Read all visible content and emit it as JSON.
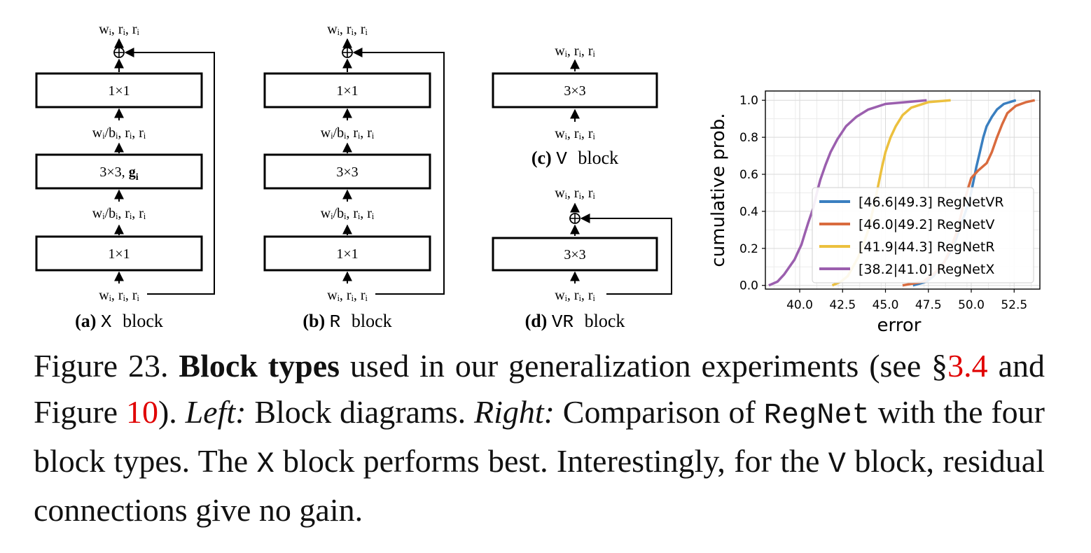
{
  "diagrams": {
    "io_label": "w",
    "sub_i": "i",
    "label_full": "wᵢ, rᵢ, rᵢ",
    "label_bottleneck": "wᵢ/bᵢ, rᵢ, rᵢ",
    "conv_1x1": "1×1",
    "conv_3x3": "3×3",
    "conv_3x3_group_prefix": "3×3, ",
    "conv_3x3_group_g": "g",
    "conv_3x3_group_sub": "i",
    "block_a_letter": "(a)",
    "block_a_name": "X",
    "block_b_letter": "(b)",
    "block_b_name": "R",
    "block_c_letter": "(c)",
    "block_c_name": "V",
    "block_d_letter": "(d)",
    "block_d_name": "VR",
    "block_word": "block"
  },
  "chart_data": {
    "type": "line",
    "xlabel": "error",
    "ylabel": "cumulative prob.",
    "xlim": [
      38.0,
      54.0
    ],
    "ylim": [
      -0.02,
      1.05
    ],
    "xticks": [
      40.0,
      42.5,
      45.0,
      47.5,
      50.0,
      52.5
    ],
    "xtick_labels": [
      "40.0",
      "42.5",
      "45.0",
      "47.5",
      "50.0",
      "52.5"
    ],
    "yticks": [
      0.0,
      0.2,
      0.4,
      0.6,
      0.8,
      1.0
    ],
    "ytick_labels": [
      "0.0",
      "0.2",
      "0.4",
      "0.6",
      "0.8",
      "1.0"
    ],
    "grid": true,
    "legend_position": "lower-right",
    "series": [
      {
        "name": "[46.6|49.3] RegNetVR",
        "color": "#3a7fc0",
        "points": [
          [
            46.6,
            0.0
          ],
          [
            47.4,
            0.02
          ],
          [
            47.8,
            0.05
          ],
          [
            48.2,
            0.1
          ],
          [
            48.6,
            0.15
          ],
          [
            49.0,
            0.22
          ],
          [
            49.3,
            0.3
          ],
          [
            49.6,
            0.38
          ],
          [
            49.9,
            0.46
          ],
          [
            50.1,
            0.55
          ],
          [
            50.3,
            0.64
          ],
          [
            50.5,
            0.72
          ],
          [
            50.7,
            0.8
          ],
          [
            50.9,
            0.86
          ],
          [
            51.2,
            0.91
          ],
          [
            51.5,
            0.95
          ],
          [
            51.9,
            0.98
          ],
          [
            52.6,
            1.0
          ]
        ]
      },
      {
        "name": "[46.0|49.2] RegNetV",
        "color": "#d96b3e",
        "points": [
          [
            46.0,
            0.0
          ],
          [
            47.2,
            0.02
          ],
          [
            47.9,
            0.07
          ],
          [
            48.4,
            0.12
          ],
          [
            48.8,
            0.2
          ],
          [
            49.2,
            0.3
          ],
          [
            49.5,
            0.42
          ],
          [
            49.8,
            0.52
          ],
          [
            50.0,
            0.58
          ],
          [
            50.4,
            0.62
          ],
          [
            50.9,
            0.66
          ],
          [
            51.2,
            0.72
          ],
          [
            51.5,
            0.8
          ],
          [
            51.8,
            0.87
          ],
          [
            52.1,
            0.93
          ],
          [
            52.6,
            0.97
          ],
          [
            53.2,
            0.99
          ],
          [
            53.7,
            1.0
          ]
        ]
      },
      {
        "name": "[41.9|44.3] RegNetR",
        "color": "#ecc03e",
        "points": [
          [
            41.9,
            0.0
          ],
          [
            42.4,
            0.02
          ],
          [
            42.8,
            0.05
          ],
          [
            43.1,
            0.1
          ],
          [
            43.4,
            0.15
          ],
          [
            43.7,
            0.22
          ],
          [
            44.0,
            0.3
          ],
          [
            44.2,
            0.38
          ],
          [
            44.4,
            0.46
          ],
          [
            44.6,
            0.55
          ],
          [
            44.8,
            0.64
          ],
          [
            45.0,
            0.72
          ],
          [
            45.3,
            0.8
          ],
          [
            45.6,
            0.86
          ],
          [
            46.0,
            0.92
          ],
          [
            46.5,
            0.96
          ],
          [
            47.5,
            0.99
          ],
          [
            48.8,
            1.0
          ]
        ]
      },
      {
        "name": "[38.2|41.0] RegNetX",
        "color": "#9b5fae",
        "points": [
          [
            38.2,
            0.0
          ],
          [
            38.7,
            0.02
          ],
          [
            39.1,
            0.06
          ],
          [
            39.4,
            0.1
          ],
          [
            39.7,
            0.14
          ],
          [
            39.9,
            0.18
          ],
          [
            40.1,
            0.22
          ],
          [
            40.3,
            0.28
          ],
          [
            40.5,
            0.34
          ],
          [
            40.8,
            0.42
          ],
          [
            41.0,
            0.5
          ],
          [
            41.2,
            0.57
          ],
          [
            41.5,
            0.65
          ],
          [
            41.8,
            0.72
          ],
          [
            42.2,
            0.79
          ],
          [
            42.7,
            0.86
          ],
          [
            43.3,
            0.91
          ],
          [
            44.0,
            0.95
          ],
          [
            45.0,
            0.98
          ],
          [
            46.2,
            0.99
          ],
          [
            47.4,
            1.0
          ]
        ]
      }
    ]
  },
  "caption": {
    "figure_label": "Figure 23. ",
    "bold_title": "Block types",
    "text1": " used in our generalization experiments (see §",
    "ref1": "3.4",
    "text2": " and Figure ",
    "ref2": "10",
    "text3": "). ",
    "left_label": "Left:",
    "text4": " Block diagrams. ",
    "right_label": "Right:",
    "text5": " Comparison of ",
    "regnet": "RegNet",
    "text6": " with the four block types.  The ",
    "x_block": "X",
    "text7": " block performs best. Interestingly, for the ",
    "v_block": "V",
    "text8": " block, residual connections give no gain."
  }
}
